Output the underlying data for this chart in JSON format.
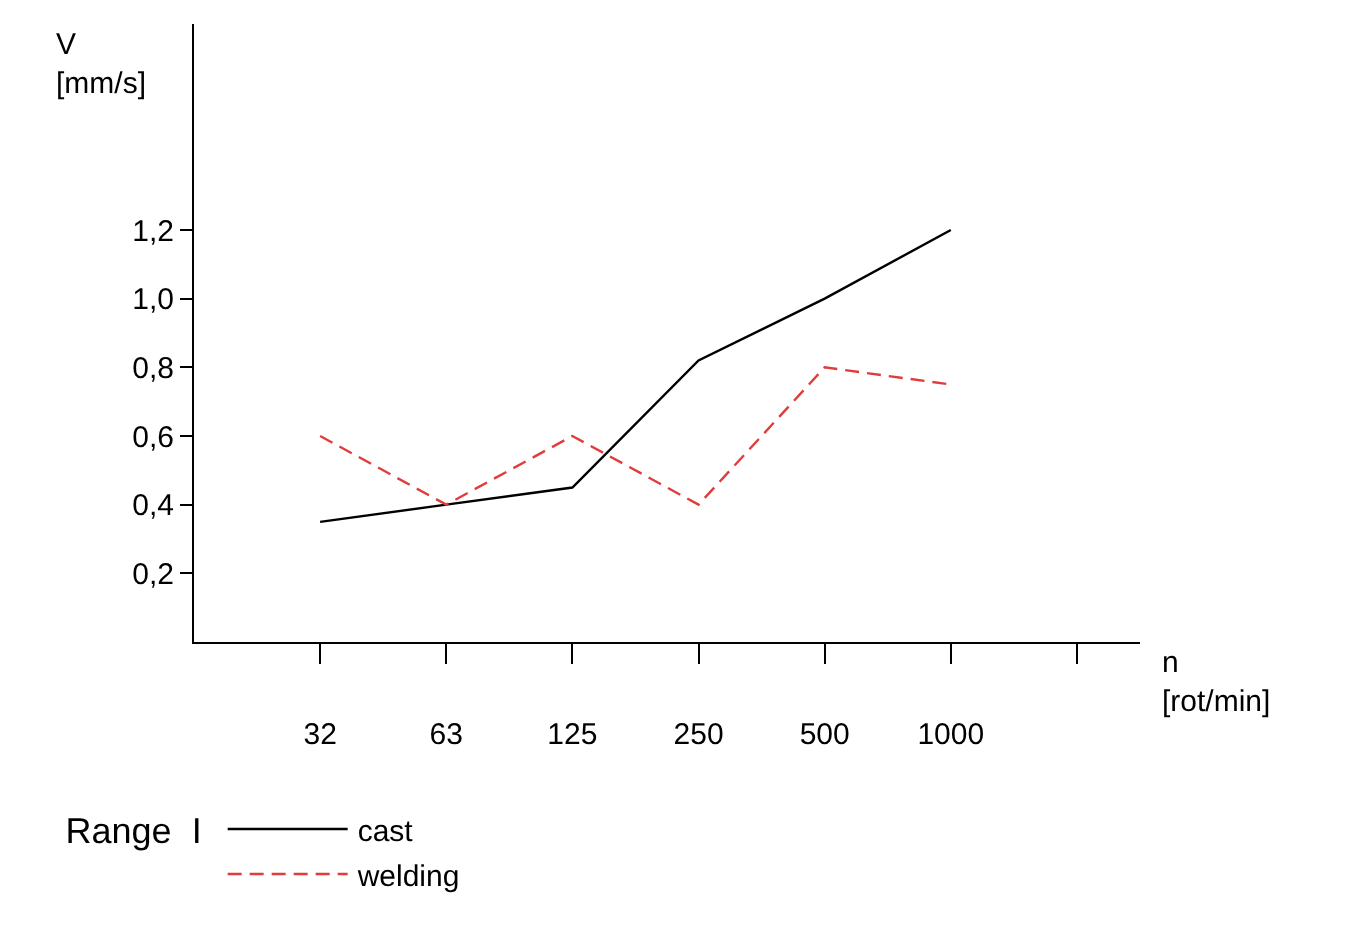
{
  "chart_data": {
    "type": "line",
    "categories": [
      "32",
      "63",
      "125",
      "250",
      "500",
      "1000",
      null
    ],
    "series": [
      {
        "name": "cast",
        "color": "#000000",
        "line_style": "solid",
        "values": [
          0.35,
          0.4,
          0.45,
          0.82,
          1.0,
          1.2,
          null
        ]
      },
      {
        "name": "welding",
        "color": "#e03c3c",
        "line_style": "dashed",
        "values": [
          0.6,
          0.4,
          0.6,
          0.4,
          0.8,
          0.75,
          null
        ]
      }
    ],
    "ylabel": "V\n[mm/s]",
    "xlabel": "n\n[rot/min]",
    "legend_title": "Range  I",
    "ylim": [
      0,
      1.8
    ],
    "yticks": [
      {
        "value": 0.2,
        "label": "0,2"
      },
      {
        "value": 0.4,
        "label": "0,4"
      },
      {
        "value": 0.6,
        "label": "0,6"
      },
      {
        "value": 0.8,
        "label": "0,8"
      },
      {
        "value": 1.0,
        "label": "1,0"
      },
      {
        "value": 1.2,
        "label": "1,2"
      }
    ],
    "legend": "bottom",
    "marker": "none"
  }
}
